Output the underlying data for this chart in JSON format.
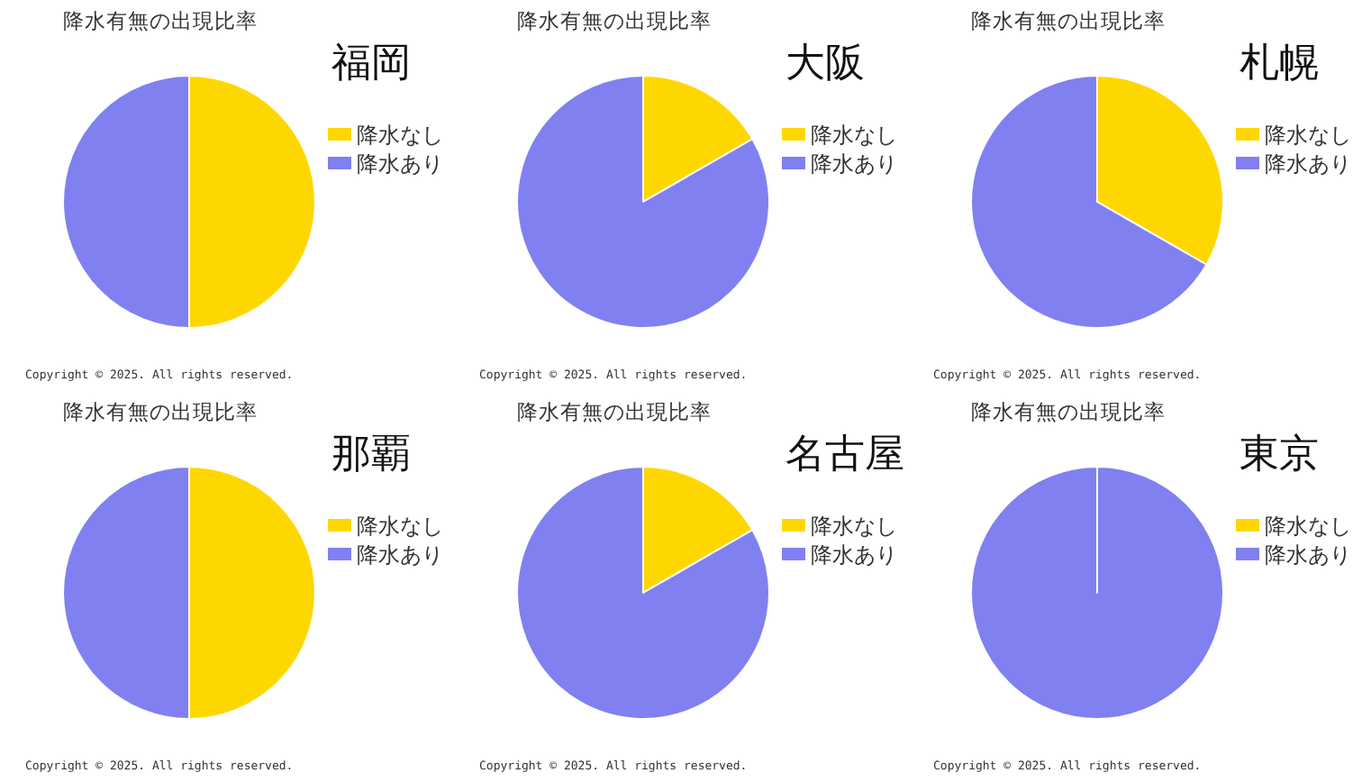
{
  "chart_data": [
    {
      "type": "pie",
      "title": "降水有無の出現比率",
      "subtitle": "福岡",
      "categories": [
        "降水なし",
        "降水あり"
      ],
      "values": [
        50,
        50
      ],
      "colors": [
        "#ffd700",
        "#8080f0"
      ],
      "legend": "right",
      "annotations": [
        "Copyright © 2025. All rights reserved."
      ]
    },
    {
      "type": "pie",
      "title": "降水有無の出現比率",
      "subtitle": "大阪",
      "categories": [
        "降水なし",
        "降水あり"
      ],
      "values": [
        16.7,
        83.3
      ],
      "colors": [
        "#ffd700",
        "#8080f0"
      ],
      "legend": "right",
      "annotations": [
        "Copyright © 2025. All rights reserved."
      ]
    },
    {
      "type": "pie",
      "title": "降水有無の出現比率",
      "subtitle": "札幌",
      "categories": [
        "降水なし",
        "降水あり"
      ],
      "values": [
        33.3,
        66.7
      ],
      "colors": [
        "#ffd700",
        "#8080f0"
      ],
      "legend": "right",
      "annotations": [
        "Copyright © 2025. All rights reserved."
      ]
    },
    {
      "type": "pie",
      "title": "降水有無の出現比率",
      "subtitle": "那覇",
      "categories": [
        "降水なし",
        "降水あり"
      ],
      "values": [
        50,
        50
      ],
      "colors": [
        "#ffd700",
        "#8080f0"
      ],
      "legend": "right",
      "annotations": [
        "Copyright © 2025. All rights reserved."
      ]
    },
    {
      "type": "pie",
      "title": "降水有無の出現比率",
      "subtitle": "名古屋",
      "categories": [
        "降水なし",
        "降水あり"
      ],
      "values": [
        16.7,
        83.3
      ],
      "colors": [
        "#ffd700",
        "#8080f0"
      ],
      "legend": "right",
      "annotations": [
        "Copyright © 2025. All rights reserved."
      ]
    },
    {
      "type": "pie",
      "title": "降水有無の出現比率",
      "subtitle": "東京",
      "categories": [
        "降水なし",
        "降水あり"
      ],
      "values": [
        0,
        100
      ],
      "colors": [
        "#ffd700",
        "#8080f0"
      ],
      "legend": "right",
      "annotations": [
        "Copyright © 2025. All rights reserved."
      ]
    }
  ]
}
